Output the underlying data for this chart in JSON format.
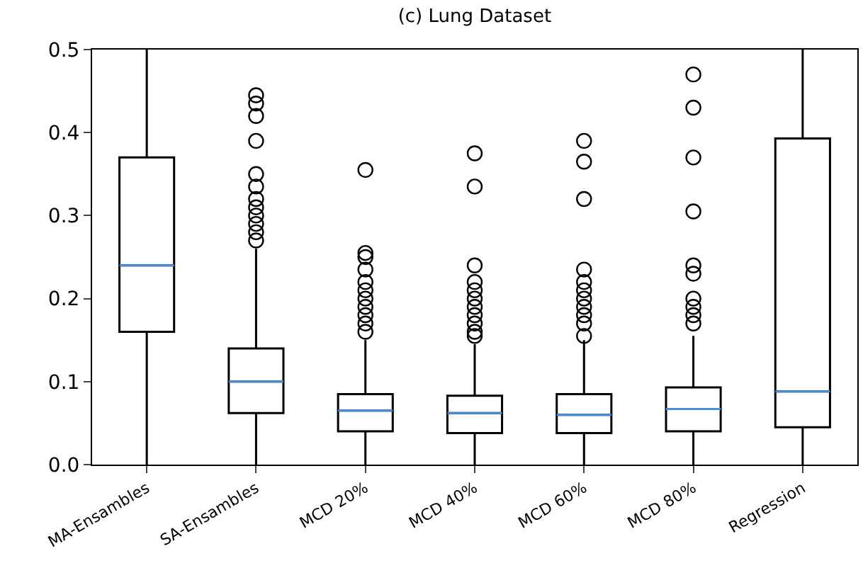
{
  "chart_data": {
    "type": "box",
    "title": "(c) Lung Dataset",
    "categories": [
      "MA-Ensambles",
      "SA-Ensambles",
      "MCD 20%",
      "MCD 40%",
      "MCD 60%",
      "MCD 80%",
      "Regression"
    ],
    "boxes": [
      {
        "low": 0,
        "q1": 0.16,
        "median": 0.24,
        "q3": 0.37,
        "high": 0.5
      },
      {
        "low": 0,
        "q1": 0.062,
        "median": 0.1,
        "q3": 0.14,
        "high": 0.26,
        "outliers": [
          0.27,
          0.28,
          0.29,
          0.3,
          0.31,
          0.32,
          0.335,
          0.35,
          0.39,
          0.42,
          0.435,
          0.445
        ]
      },
      {
        "low": 0,
        "q1": 0.04,
        "median": 0.065,
        "q3": 0.085,
        "high": 0.15,
        "outliers": [
          0.16,
          0.17,
          0.18,
          0.19,
          0.2,
          0.21,
          0.22,
          0.235,
          0.25,
          0.255,
          0.355
        ]
      },
      {
        "low": 0,
        "q1": 0.038,
        "median": 0.062,
        "q3": 0.083,
        "high": 0.145,
        "outliers": [
          0.155,
          0.16,
          0.17,
          0.18,
          0.19,
          0.2,
          0.21,
          0.22,
          0.24,
          0.335,
          0.375
        ]
      },
      {
        "low": 0,
        "q1": 0.038,
        "median": 0.06,
        "q3": 0.085,
        "high": 0.15,
        "outliers": [
          0.155,
          0.17,
          0.18,
          0.19,
          0.2,
          0.21,
          0.22,
          0.235,
          0.32,
          0.365,
          0.39
        ]
      },
      {
        "low": 0,
        "q1": 0.04,
        "median": 0.067,
        "q3": 0.093,
        "high": 0.155,
        "outliers": [
          0.17,
          0.18,
          0.19,
          0.2,
          0.23,
          0.24,
          0.305,
          0.37,
          0.43,
          0.47
        ]
      },
      {
        "low": 0,
        "q1": 0.045,
        "median": 0.088,
        "q3": 0.393,
        "high": 0.5
      }
    ],
    "color": "#000000",
    "marker": "circle",
    "ylim": [
      0,
      0.5
    ],
    "yticks": [
      {
        "value": 0,
        "label": "0.0"
      },
      0.1,
      0.2,
      0.3,
      0.4,
      0.5
    ],
    "grid": false
  }
}
